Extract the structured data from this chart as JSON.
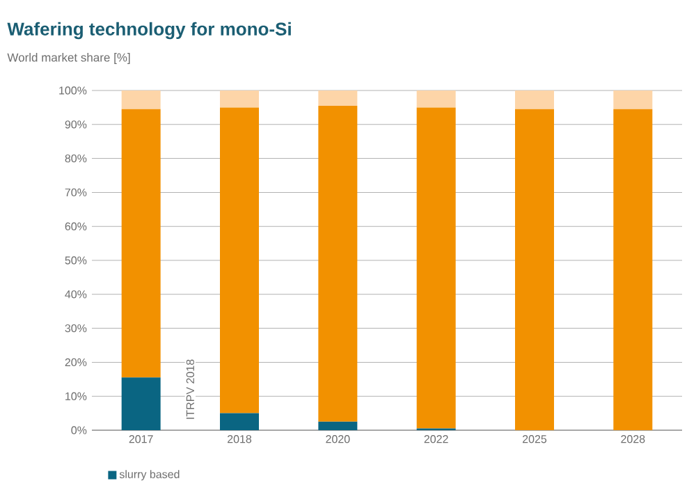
{
  "chart_data": {
    "type": "bar",
    "stacked": true,
    "title": "Wafering technology for mono-Si",
    "subtitle": "World market share [%]",
    "categories": [
      "2017",
      "2018",
      "2020",
      "2022",
      "2025",
      "2028"
    ],
    "series": [
      {
        "name": "slurry based",
        "color": "#0a6582",
        "values": [
          15.5,
          5,
          2.5,
          0.5,
          0,
          0
        ]
      },
      {
        "color": "#f29100",
        "values": [
          79,
          90,
          93,
          94.5,
          94.5,
          94.5
        ]
      },
      {
        "color": "#fdd5a8",
        "values": [
          5.5,
          5,
          4.5,
          5,
          5.5,
          5.5
        ]
      }
    ],
    "ylim": [
      0,
      100
    ],
    "yticks": [
      {
        "value": 0,
        "label": "0%"
      },
      {
        "value": 10,
        "label": "10%"
      },
      {
        "value": 20,
        "label": "20%"
      },
      {
        "value": 30,
        "label": "30%"
      },
      {
        "value": 40,
        "label": "40%"
      },
      {
        "value": 50,
        "label": "50%"
      },
      {
        "value": 60,
        "label": "60%"
      },
      {
        "value": 70,
        "label": "70%"
      },
      {
        "value": 80,
        "label": "80%"
      },
      {
        "value": 90,
        "label": "90%"
      },
      {
        "value": 100,
        "label": "100%"
      }
    ],
    "grid": "y",
    "legend": "bottom",
    "annotations": [
      "ITRPV 2018"
    ]
  }
}
